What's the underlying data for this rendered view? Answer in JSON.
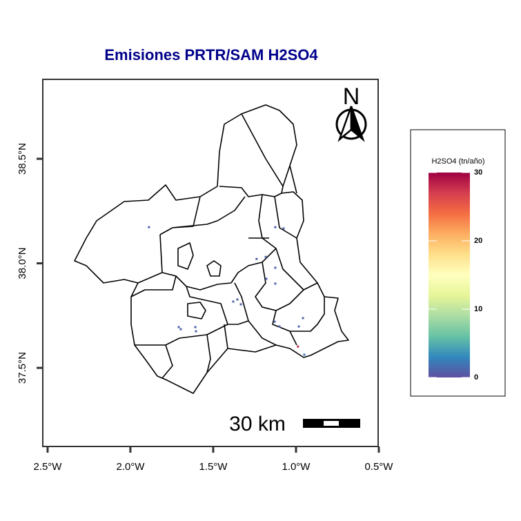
{
  "map": {
    "title": "Emisiones PRTR/SAM H2SO4",
    "xaxis": {
      "lim": [
        -2.529,
        -0.504
      ],
      "ticks": [
        {
          "value": -2.5,
          "label": "2.5°W"
        },
        {
          "value": -2.0,
          "label": "2.0°W"
        },
        {
          "value": -1.5,
          "label": "1.5°W"
        },
        {
          "value": -1.0,
          "label": "1.0°W"
        },
        {
          "value": -0.5,
          "label": "0.5°W"
        }
      ]
    },
    "yaxis": {
      "lim": [
        37.124,
        38.88
      ],
      "ticks": [
        {
          "value": 37.5,
          "label": "37.5°N"
        },
        {
          "value": 38.0,
          "label": "38.0°N"
        },
        {
          "value": 38.5,
          "label": "38.5°N"
        }
      ]
    },
    "north": "N",
    "scale_bar": {
      "label": "30 km"
    },
    "legend": {
      "title": "H2SO4 (tn/año)",
      "lim": [
        0,
        30
      ],
      "ticks": [
        0,
        10,
        20,
        30
      ],
      "colors": [
        "#5e4fa2",
        "#3288bd",
        "#66c2a5",
        "#abdda4",
        "#e6f598",
        "#ffffbf",
        "#fee08b",
        "#fdae61",
        "#f46d43",
        "#d53e4f",
        "#9e0142"
      ]
    },
    "points": {
      "lon": [
        -1.888,
        -1.125,
        -1.075,
        -1.238,
        -1.183,
        -1.125,
        -1.179,
        -1.125,
        -1.379,
        -1.354,
        -1.333,
        -1.708,
        -1.696,
        -1.608,
        -1.604,
        -1.129,
        -1.1,
        -0.958,
        -0.983,
        -0.988,
        -0.95
      ],
      "lat": [
        38.173,
        38.173,
        38.167,
        38.021,
        38.031,
        37.979,
        37.926,
        37.903,
        37.817,
        37.827,
        37.804,
        37.695,
        37.685,
        37.695,
        37.675,
        37.721,
        37.698,
        37.738,
        37.698,
        37.602,
        37.563
      ],
      "values": [
        1,
        1,
        1,
        1,
        1,
        1,
        1,
        1,
        1,
        1,
        1,
        1,
        1,
        1,
        1,
        1,
        1,
        1,
        1,
        28,
        2
      ]
    }
  }
}
